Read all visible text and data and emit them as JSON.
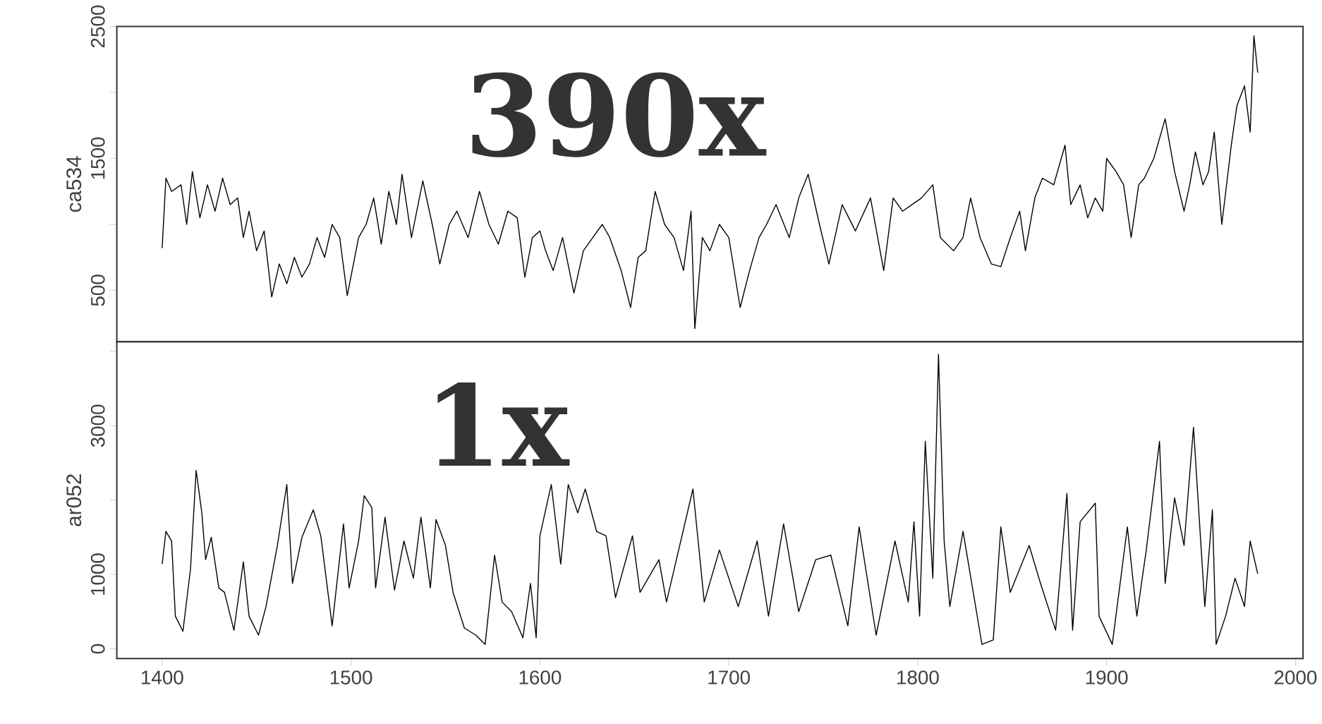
{
  "chart_data": [
    {
      "type": "line",
      "ylabel": "ca534",
      "color": "#000000",
      "tick_labels": "y",
      "annotations": [
        "390x"
      ],
      "xlim": [
        1376,
        2004
      ],
      "ylim": [
        110,
        2500
      ],
      "yticks": [
        500,
        {
          "value": 1000,
          "label": null
        },
        1500,
        {
          "value": 2000,
          "label": null
        },
        2500
      ],
      "x": [
        1400,
        1402,
        1405,
        1410,
        1413,
        1416,
        1420,
        1424,
        1428,
        1432,
        1436,
        1440,
        1443,
        1446,
        1450,
        1454,
        1458,
        1462,
        1466,
        1470,
        1474,
        1478,
        1482,
        1486,
        1490,
        1494,
        1498,
        1504,
        1508,
        1512,
        1516,
        1520,
        1524,
        1527,
        1532,
        1538,
        1543,
        1547,
        1552,
        1556,
        1562,
        1568,
        1573,
        1578,
        1583,
        1588,
        1592,
        1596,
        1600,
        1603,
        1607,
        1612,
        1618,
        1623,
        1628,
        1633,
        1637,
        1643,
        1648,
        1652,
        1656,
        1661,
        1666,
        1671,
        1676,
        1680,
        1682,
        1686,
        1690,
        1695,
        1700,
        1706,
        1711,
        1716,
        1720,
        1725,
        1732,
        1737,
        1742,
        1748,
        1753,
        1760,
        1767,
        1775,
        1782,
        1787,
        1792,
        1797,
        1802,
        1808,
        1812,
        1819,
        1824,
        1828,
        1833,
        1839,
        1844,
        1849,
        1854,
        1857,
        1862,
        1866,
        1872,
        1878,
        1881,
        1886,
        1890,
        1894,
        1898,
        1900,
        1905,
        1909,
        1913,
        1917,
        1920,
        1925,
        1931,
        1936,
        1941,
        1944,
        1947,
        1951,
        1954,
        1957,
        1961,
        1966,
        1969,
        1973,
        1976,
        1978,
        1980
      ],
      "values": [
        820,
        1350,
        1250,
        1300,
        1000,
        1400,
        1050,
        1300,
        1100,
        1350,
        1150,
        1200,
        900,
        1100,
        800,
        950,
        450,
        700,
        550,
        750,
        600,
        700,
        900,
        750,
        1000,
        900,
        460,
        900,
        1000,
        1200,
        850,
        1250,
        1000,
        1380,
        900,
        1330,
        1000,
        700,
        1000,
        1100,
        900,
        1250,
        1000,
        850,
        1100,
        1050,
        600,
        900,
        950,
        800,
        650,
        900,
        480,
        800,
        900,
        1000,
        900,
        650,
        370,
        750,
        800,
        1250,
        1000,
        900,
        650,
        1100,
        210,
        900,
        800,
        1000,
        900,
        370,
        650,
        900,
        1000,
        1150,
        900,
        1200,
        1380,
        1000,
        700,
        1150,
        950,
        1200,
        650,
        1200,
        1100,
        1150,
        1200,
        1300,
        900,
        800,
        900,
        1200,
        900,
        700,
        680,
        900,
        1100,
        800,
        1200,
        1350,
        1300,
        1600,
        1150,
        1300,
        1050,
        1200,
        1100,
        1500,
        1400,
        1300,
        900,
        1300,
        1350,
        1500,
        1800,
        1400,
        1100,
        1300,
        1550,
        1300,
        1400,
        1700,
        1000,
        1600,
        1900,
        2050,
        1700,
        2430,
        2150
      ]
    },
    {
      "type": "line",
      "ylabel": "ar052",
      "color": "#000000",
      "annotations": [
        "1x"
      ],
      "xlim": [
        1376,
        2004
      ],
      "ylim": [
        -130,
        4130
      ],
      "xticks": [
        1400,
        1500,
        1600,
        1700,
        1800,
        1900,
        2000
      ],
      "yticks": [
        0,
        1000,
        {
          "value": 2000,
          "label": null
        },
        3000,
        {
          "value": 4000,
          "label": null
        }
      ],
      "x": [
        1400,
        1402,
        1405,
        1407,
        1411,
        1415,
        1418,
        1421,
        1423,
        1426,
        1430,
        1433,
        1438,
        1443,
        1446,
        1451,
        1455,
        1461,
        1466,
        1469,
        1474,
        1480,
        1484,
        1490,
        1496,
        1499,
        1504,
        1507,
        1511,
        1513,
        1518,
        1523,
        1528,
        1533,
        1537,
        1542,
        1545,
        1550,
        1554,
        1560,
        1566,
        1571,
        1576,
        1580,
        1585,
        1591,
        1595,
        1598,
        1600,
        1606,
        1611,
        1615,
        1620,
        1624,
        1630,
        1635,
        1640,
        1649,
        1653,
        1663,
        1667,
        1681,
        1687,
        1695,
        1705,
        1715,
        1721,
        1729,
        1737,
        1746,
        1754,
        1763,
        1769,
        1778,
        1788,
        1795,
        1798,
        1801,
        1804,
        1808,
        1811,
        1814,
        1817,
        1824,
        1834,
        1840,
        1844,
        1849,
        1859,
        1865,
        1873,
        1879,
        1882,
        1886,
        1894,
        1896,
        1903,
        1911,
        1916,
        1921,
        1928,
        1931,
        1936,
        1941,
        1946,
        1952,
        1956,
        1958,
        1963,
        1968,
        1973,
        1976,
        1980
      ],
      "values": [
        1140,
        1580,
        1450,
        440,
        235,
        1070,
        2400,
        1830,
        1200,
        1500,
        820,
        760,
        250,
        1170,
        440,
        185,
        570,
        1390,
        2210,
        880,
        1500,
        1870,
        1520,
        310,
        1680,
        820,
        1450,
        2060,
        1900,
        820,
        1770,
        790,
        1450,
        950,
        1770,
        820,
        1740,
        1390,
        760,
        280,
        185,
        60,
        1260,
        630,
        500,
        150,
        880,
        150,
        1520,
        2210,
        1140,
        2210,
        1830,
        2150,
        1580,
        1520,
        690,
        1520,
        760,
        1200,
        630,
        2150,
        630,
        1330,
        570,
        1450,
        440,
        1680,
        500,
        1200,
        1260,
        310,
        1640,
        185,
        1450,
        630,
        1710,
        440,
        2790,
        950,
        3960,
        1450,
        570,
        1580,
        60,
        120,
        1640,
        760,
        1390,
        880,
        250,
        2090,
        250,
        1710,
        1960,
        440,
        60,
        1640,
        440,
        1330,
        2790,
        880,
        2030,
        1390,
        2980,
        570,
        1870,
        60,
        440,
        950,
        570,
        1450,
        1010
      ]
    }
  ]
}
